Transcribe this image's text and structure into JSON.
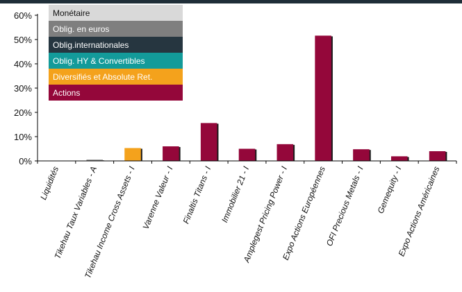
{
  "chart_data": {
    "type": "bar",
    "ylim": [
      0,
      60
    ],
    "yticks": [
      "0%",
      "10%",
      "20%",
      "30%",
      "40%",
      "50%",
      "60%"
    ],
    "legend_position": "top-left",
    "legend": [
      {
        "label": "Monétaire",
        "color": "#d9d9d9",
        "text_color": "#111111"
      },
      {
        "label": "Oblig. en euros",
        "color": "#7f7f7f",
        "text_color": "#ffffff"
      },
      {
        "label": "Oblig.internationales",
        "color": "#263640",
        "text_color": "#ffffff"
      },
      {
        "label": "Oblig. HY & Convertibles",
        "color": "#139b9a",
        "text_color": "#ffffff"
      },
      {
        "label": "Diversifiés et Absolute Ret.",
        "color": "#f4a21c",
        "text_color": "#ffffff"
      },
      {
        "label": "Actions",
        "color": "#94073a",
        "text_color": "#ffffff"
      }
    ],
    "categories": [
      "Liquidités",
      "Tikehau Taux Variables - A",
      "Tikehau Income Cross Assets - I",
      "Varenne Valeur - I",
      "Finaltis Titans - I",
      "Immobilier 21 - I",
      "Amplegest Pricing Power - I",
      "Expo Actions Européennes",
      "OFI Precious Metals - I",
      "Gemequity - I",
      "Expo Actions Américaines"
    ],
    "values": [
      0.0,
      0.5,
      5.3,
      6.0,
      15.6,
      5.0,
      6.9,
      51.6,
      4.8,
      1.9,
      4.0
    ],
    "bar_colors": [
      "#d9d9d9",
      "#7f7f7f",
      "#f4a21c",
      "#94073a",
      "#94073a",
      "#94073a",
      "#94073a",
      "#94073a",
      "#94073a",
      "#94073a",
      "#94073a"
    ]
  }
}
